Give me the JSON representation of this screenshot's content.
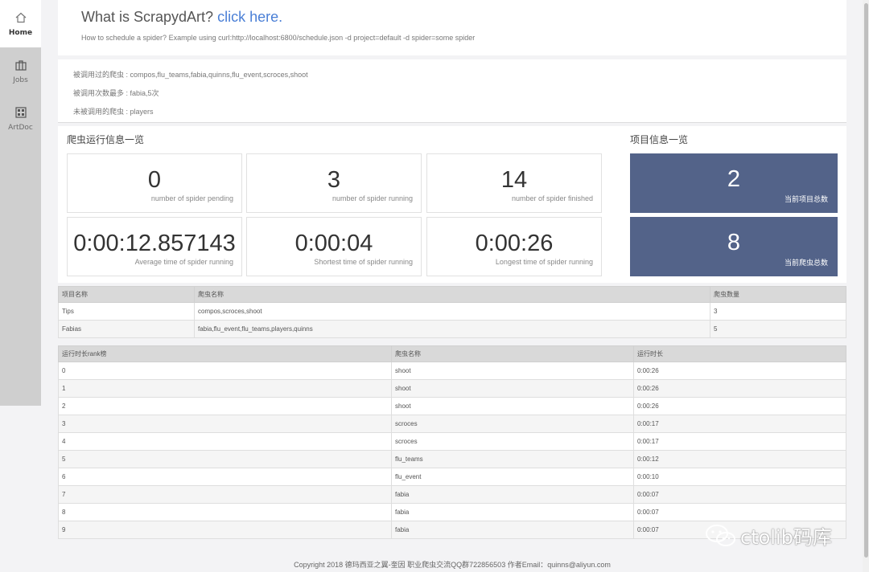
{
  "sidebar": {
    "items": [
      {
        "label": "Home",
        "icon": "home-icon",
        "active": true
      },
      {
        "label": "Jobs",
        "icon": "briefcase-icon",
        "active": false
      },
      {
        "label": "ArtDoc",
        "icon": "grid-icon",
        "active": false
      }
    ]
  },
  "header": {
    "title_prefix": "What is ScrapydArt?",
    "title_link": "click here.",
    "subtitle": "How to schedule a spider? Example using curl:http://localhost:6800/schedule.json -d project=default -d spider=some spider"
  },
  "summary": {
    "line1": "被调用过的爬虫 : compos,flu_teams,fabia,quinns,flu_event,scroces,shoot",
    "line2": "被调用次数最多 : fabia,5次",
    "line3": "未被调用的爬虫 : players"
  },
  "spider_stats": {
    "title": "爬虫运行信息一览",
    "cards": [
      {
        "value": "0",
        "caption": "number of spider pending"
      },
      {
        "value": "3",
        "caption": "number of spider running"
      },
      {
        "value": "14",
        "caption": "number of spider finished"
      },
      {
        "value": "0:00:12.857143",
        "caption": "Average time of spider running"
      },
      {
        "value": "0:00:04",
        "caption": "Shortest time of spider running"
      },
      {
        "value": "0:00:26",
        "caption": "Longest time of spider running"
      }
    ]
  },
  "project_stats": {
    "title": "项目信息一览",
    "color": "#536389",
    "cards": [
      {
        "value": "2",
        "caption": "当前项目总数"
      },
      {
        "value": "8",
        "caption": "当前爬虫总数"
      }
    ]
  },
  "projects_table": {
    "headers": [
      "项目名称",
      "爬虫名称",
      "爬虫数量"
    ],
    "rows": [
      [
        "Tips",
        "compos,scroces,shoot",
        "3"
      ],
      [
        "Fabias",
        "fabia,flu_event,flu_teams,players,quinns",
        "5"
      ]
    ]
  },
  "rank_table": {
    "headers": [
      "运行时长rank榜",
      "爬虫名称",
      "运行时长"
    ],
    "rows": [
      [
        "0",
        "shoot",
        "0:00:26"
      ],
      [
        "1",
        "shoot",
        "0:00:26"
      ],
      [
        "2",
        "shoot",
        "0:00:26"
      ],
      [
        "3",
        "scroces",
        "0:00:17"
      ],
      [
        "4",
        "scroces",
        "0:00:17"
      ],
      [
        "5",
        "flu_teams",
        "0:00:12"
      ],
      [
        "6",
        "flu_event",
        "0:00:10"
      ],
      [
        "7",
        "fabia",
        "0:00:07"
      ],
      [
        "8",
        "fabia",
        "0:00:07"
      ],
      [
        "9",
        "fabia",
        "0:00:07"
      ]
    ]
  },
  "footer": "Copyright 2018 德玛西亚之翼-奎因 职业爬虫交流QQ群722856503 作者Email：quinns@aliyun.com",
  "watermark": "ctolib码库"
}
